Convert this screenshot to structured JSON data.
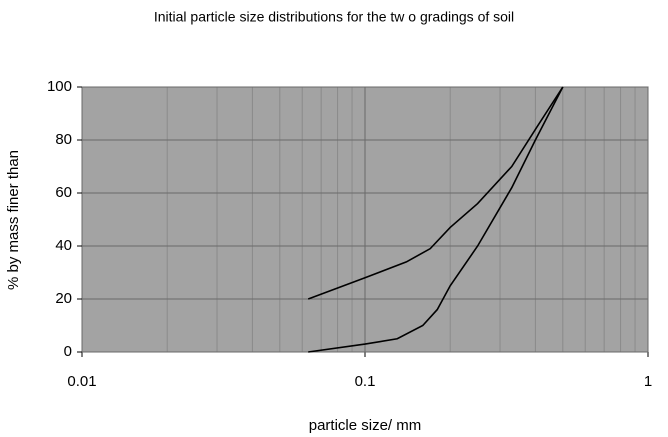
{
  "chart_data": {
    "type": "line",
    "title": "Initial particle size distributions for the tw o gradings of soil",
    "xlabel": "particle size/ mm",
    "ylabel": "% by mass finer than",
    "xscale": "log",
    "xlim": [
      0.01,
      1
    ],
    "xticks": [
      0.01,
      0.1,
      1
    ],
    "xminorticks": [
      0.02,
      0.03,
      0.04,
      0.05,
      0.06,
      0.07,
      0.08,
      0.09,
      0.2,
      0.3,
      0.4,
      0.5,
      0.6,
      0.7,
      0.8,
      0.9
    ],
    "ylim": [
      0,
      100
    ],
    "yticks": [
      0,
      20,
      40,
      60,
      80,
      100
    ],
    "grid": true,
    "background": "#a3a3a3",
    "series": [
      {
        "color": "#000000",
        "x": [
          0.063,
          0.1,
          0.14,
          0.17,
          0.2,
          0.25,
          0.33,
          0.4,
          0.5
        ],
        "values": [
          20,
          28,
          34,
          39,
          47,
          56,
          70,
          84,
          100
        ]
      },
      {
        "color": "#000000",
        "x": [
          0.063,
          0.1,
          0.13,
          0.16,
          0.18,
          0.2,
          0.25,
          0.33,
          0.4,
          0.5
        ],
        "values": [
          0,
          3,
          5,
          10,
          16,
          25,
          40,
          62,
          80,
          100
        ]
      }
    ]
  }
}
